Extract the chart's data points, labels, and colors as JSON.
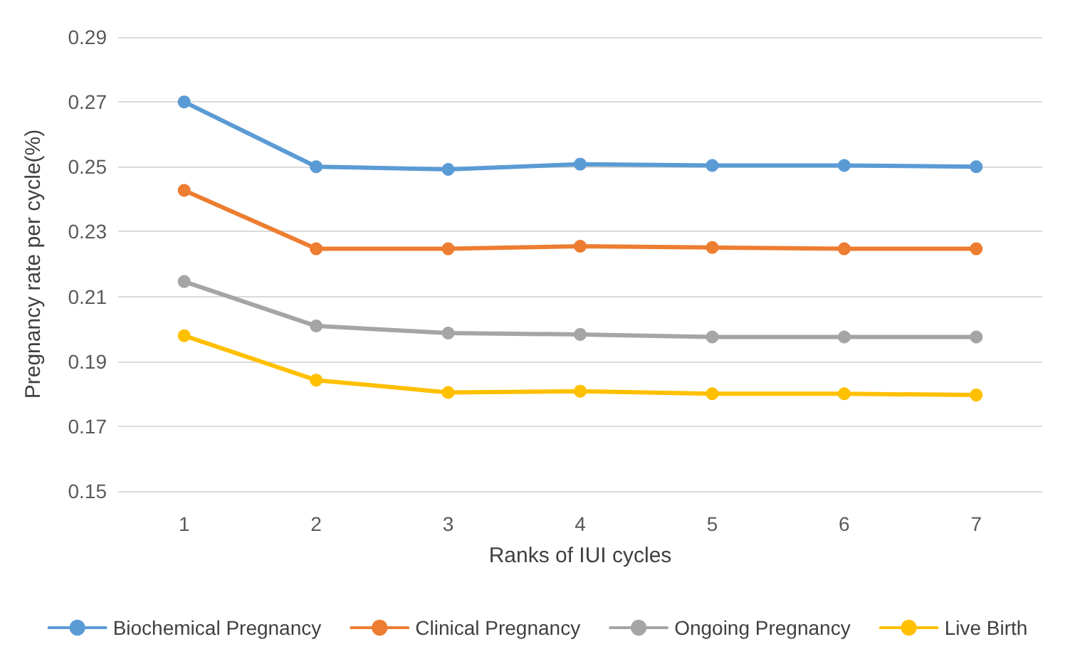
{
  "chart_data": {
    "type": "line",
    "xlabel": "Ranks of IUI cycles",
    "ylabel": "Pregnancy rate per cycle(%)",
    "categories": [
      "1",
      "2",
      "3",
      "4",
      "5",
      "6",
      "7"
    ],
    "series": [
      {
        "name": "Biochemical Pregnancy",
        "color": "#5b9bd5",
        "values": [
          0.27,
          0.25,
          0.2492,
          0.2508,
          0.2504,
          0.2504,
          0.25
        ]
      },
      {
        "name": "Clinical Pregnancy",
        "color": "#ed7d31",
        "values": [
          0.2427,
          0.2247,
          0.2247,
          0.2255,
          0.2251,
          0.2247,
          0.2247
        ]
      },
      {
        "name": "Ongoing Pregnancy",
        "color": "#a5a5a5",
        "values": [
          0.2146,
          0.2009,
          0.1987,
          0.1983,
          0.1975,
          0.1975,
          0.1975
        ]
      },
      {
        "name": "Live Birth",
        "color": "#ffc000",
        "values": [
          0.1979,
          0.1842,
          0.1804,
          0.1808,
          0.18,
          0.18,
          0.1796
        ]
      }
    ],
    "ylim": [
      0.15,
      0.29
    ],
    "yticks": [
      0.15,
      0.17,
      0.19,
      0.21,
      0.23,
      0.25,
      0.27,
      0.29
    ],
    "grid": "y",
    "legend": "bottom",
    "marker": "circle",
    "line_style": "solid"
  }
}
